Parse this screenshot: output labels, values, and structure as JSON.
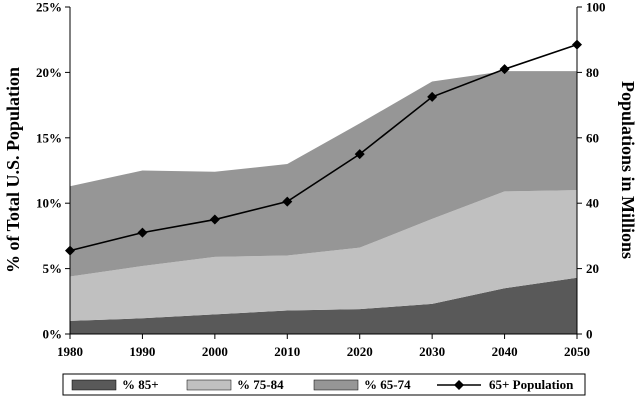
{
  "chart_data": {
    "type": "area",
    "x": [
      "1980",
      "1990",
      "2000",
      "2010",
      "2020",
      "2030",
      "2040",
      "2050"
    ],
    "xtick_labels": [
      "1980",
      "1990",
      "2000",
      "2010",
      "2020",
      "2030",
      "2040",
      "2050"
    ],
    "stacked": true,
    "series": [
      {
        "name": "% 85+",
        "type": "area",
        "axis": "left",
        "color": "#595959",
        "values": [
          1.0,
          1.2,
          1.5,
          1.8,
          1.9,
          2.3,
          3.5,
          4.3
        ]
      },
      {
        "name": "% 75-84",
        "type": "area",
        "axis": "left",
        "color": "#c0c0c0",
        "values": [
          3.4,
          4.0,
          4.4,
          4.2,
          4.7,
          6.5,
          7.4,
          6.7
        ]
      },
      {
        "name": "% 65-74",
        "type": "area",
        "axis": "left",
        "color": "#969696",
        "values": [
          6.9,
          7.3,
          6.5,
          7.0,
          9.5,
          10.5,
          9.2,
          9.1
        ]
      },
      {
        "name": "65+ Population",
        "type": "line",
        "axis": "right",
        "color": "#000000",
        "marker": "diamond",
        "values": [
          25.5,
          31.0,
          35.0,
          40.5,
          55.0,
          72.5,
          81.0,
          88.5
        ]
      }
    ],
    "y_left": {
      "label": "% of Total U.S. Population",
      "min": 0,
      "max": 25,
      "ticks": [
        0,
        5,
        10,
        15,
        20,
        25
      ],
      "tick_labels": [
        "0%",
        "5%",
        "10%",
        "15%",
        "20%",
        "25%"
      ]
    },
    "y_right": {
      "label": "Populations in Millions",
      "min": 0,
      "max": 100,
      "ticks": [
        0,
        20,
        40,
        60,
        80,
        100
      ],
      "tick_labels": [
        "0",
        "20",
        "40",
        "60",
        "80",
        "100"
      ]
    },
    "legend": {
      "position": "bottom",
      "boxed": true
    },
    "grid": false
  }
}
